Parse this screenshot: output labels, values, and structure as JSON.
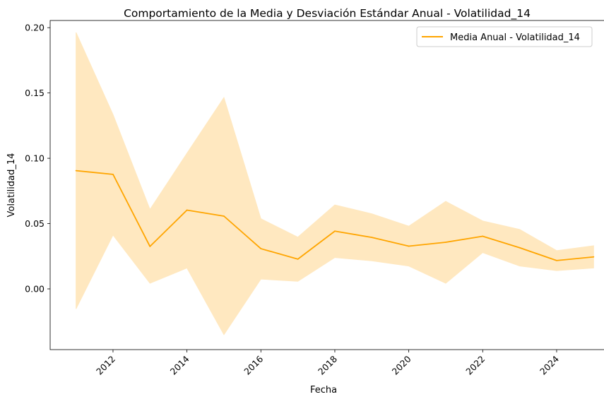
{
  "chart_data": {
    "type": "line",
    "title": "Comportamiento de la Media y Desviación Estándar Anual - Volatilidad_14",
    "xlabel": "Fecha",
    "ylabel": "Volatilidad_14",
    "x": [
      2011,
      2012,
      2013,
      2014,
      2015,
      2016,
      2017,
      2018,
      2019,
      2020,
      2021,
      2022,
      2023,
      2024,
      2025
    ],
    "series": [
      {
        "name": "Media Anual - Volatilidad_14",
        "color": "#ffa500",
        "values": [
          0.0905,
          0.0877,
          0.0325,
          0.0603,
          0.0557,
          0.0308,
          0.0228,
          0.0442,
          0.0394,
          0.0327,
          0.0357,
          0.0403,
          0.0315,
          0.0217,
          0.0245
        ],
        "band_upper": [
          0.1963,
          0.1335,
          0.0608,
          0.1038,
          0.1465,
          0.0537,
          0.0396,
          0.0643,
          0.0575,
          0.048,
          0.067,
          0.052,
          0.0455,
          0.0293,
          0.033
        ],
        "band_lower": [
          -0.0153,
          0.0412,
          0.0043,
          0.016,
          -0.035,
          0.0075,
          0.0058,
          0.024,
          0.0215,
          0.0175,
          0.0043,
          0.0278,
          0.0175,
          0.014,
          0.016
        ],
        "band_color": "#ffe8c0"
      }
    ],
    "x_ticks": [
      "2012",
      "2014",
      "2016",
      "2018",
      "2020",
      "2022",
      "2024"
    ],
    "y_ticks": [
      "0.00",
      "0.05",
      "0.10",
      "0.15",
      "0.20"
    ],
    "xlim": [
      2010.3,
      2025.3
    ],
    "ylim": [
      -0.0465,
      0.2055
    ],
    "legend_position": "top-right",
    "grid": false
  }
}
